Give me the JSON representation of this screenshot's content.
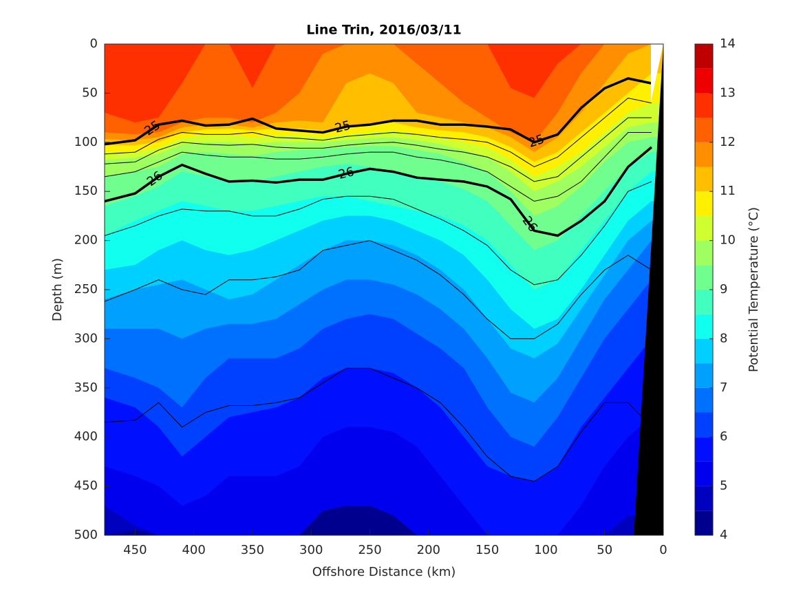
{
  "chart_data": {
    "type": "contour",
    "title": "Line Trin, 2016/03/11",
    "xlabel": "Offshore Distance (km)",
    "ylabel": "Depth (m)",
    "colorbar_label": "Potential Temperature (°C)",
    "xlim": [
      476,
      0
    ],
    "ylim": [
      0,
      500
    ],
    "xticks": [
      450,
      400,
      350,
      300,
      250,
      200,
      150,
      100,
      50,
      0
    ],
    "yticks": [
      0,
      50,
      100,
      150,
      200,
      250,
      300,
      350,
      400,
      450,
      500
    ],
    "clim": [
      4,
      14
    ],
    "cticks": [
      4,
      5,
      6,
      7,
      8,
      9,
      10,
      11,
      12,
      13,
      14
    ],
    "levels": [
      4,
      4.5,
      5,
      5.5,
      6,
      6.5,
      7,
      7.5,
      8,
      8.5,
      9,
      9.5,
      10,
      10.5,
      11,
      11.5,
      12,
      12.5,
      13,
      13.5,
      14
    ],
    "colors": [
      "#00008f",
      "#0000bf",
      "#0000ef",
      "#0010ff",
      "#0040ff",
      "#0070ff",
      "#00a0ff",
      "#00d0ff",
      "#10ffef",
      "#40ffbf",
      "#70ff8f",
      "#a0ff60",
      "#d0ff30",
      "#ffef00",
      "#ffbf00",
      "#ff8f00",
      "#ff6000",
      "#ff3000",
      "#ef0000",
      "#bf0000"
    ],
    "x": [
      476,
      450,
      430,
      410,
      390,
      370,
      350,
      330,
      310,
      290,
      270,
      250,
      230,
      210,
      190,
      170,
      150,
      130,
      110,
      90,
      70,
      50,
      30,
      10
    ],
    "isotherms": [
      {
        "level": 12.5,
        "depths": [
          70,
          80,
          75,
          40,
          0,
          0,
          45,
          0,
          0,
          0,
          0,
          0,
          0,
          0,
          0,
          0,
          0,
          45,
          55,
          20,
          0,
          0,
          0,
          0
        ]
      },
      {
        "level": 12,
        "depths": [
          90,
          92,
          90,
          80,
          75,
          75,
          80,
          70,
          50,
          10,
          0,
          0,
          0,
          20,
          40,
          60,
          75,
          90,
          100,
          70,
          30,
          0,
          0,
          0
        ]
      },
      {
        "level": 11.5,
        "depths": [
          97,
          98,
          95,
          85,
          82,
          82,
          85,
          80,
          78,
          80,
          40,
          30,
          40,
          70,
          75,
          80,
          85,
          95,
          110,
          95,
          70,
          40,
          10,
          0
        ]
      },
      {
        "level": 11,
        "depths": [
          103,
          103,
          100,
          90,
          87,
          86,
          88,
          86,
          86,
          88,
          85,
          82,
          80,
          85,
          88,
          90,
          95,
          105,
          120,
          110,
          90,
          70,
          50,
          30
        ]
      },
      {
        "level": 10.5,
        "depths": [
          110,
          110,
          106,
          96,
          93,
          93,
          95,
          93,
          93,
          95,
          92,
          90,
          88,
          92,
          95,
          100,
          105,
          118,
          135,
          125,
          110,
          90,
          70,
          60
        ]
      },
      {
        "level": 10,
        "depths": [
          118,
          116,
          112,
          102,
          100,
          100,
          102,
          100,
          100,
          100,
          98,
          96,
          95,
          98,
          102,
          108,
          115,
          130,
          150,
          140,
          125,
          105,
          85,
          80
        ]
      },
      {
        "level": 9.5,
        "depths": [
          135,
          130,
          125,
          112,
          110,
          112,
          114,
          110,
          108,
          107,
          105,
          104,
          104,
          108,
          112,
          120,
          130,
          150,
          175,
          165,
          145,
          120,
          100,
          95
        ]
      },
      {
        "level": 9,
        "depths": [
          165,
          155,
          145,
          130,
          135,
          140,
          140,
          135,
          130,
          125,
          122,
          125,
          130,
          135,
          140,
          148,
          160,
          185,
          210,
          200,
          175,
          150,
          125,
          110
        ]
      },
      {
        "level": 8.5,
        "depths": [
          195,
          180,
          170,
          160,
          165,
          170,
          170,
          165,
          160,
          155,
          155,
          160,
          165,
          170,
          175,
          185,
          200,
          225,
          250,
          240,
          210,
          180,
          150,
          130
        ]
      },
      {
        "level": 8,
        "depths": [
          230,
          225,
          210,
          200,
          210,
          215,
          210,
          200,
          190,
          180,
          175,
          175,
          180,
          190,
          200,
          215,
          240,
          270,
          290,
          280,
          250,
          215,
          180,
          160
        ]
      },
      {
        "level": 7.5,
        "depths": [
          260,
          250,
          245,
          240,
          250,
          260,
          255,
          240,
          225,
          210,
          200,
          200,
          205,
          215,
          230,
          250,
          280,
          310,
          320,
          305,
          270,
          235,
          200,
          180
        ]
      },
      {
        "level": 7,
        "depths": [
          290,
          290,
          290,
          300,
          290,
          285,
          285,
          280,
          265,
          250,
          240,
          240,
          245,
          255,
          270,
          290,
          320,
          355,
          365,
          340,
          300,
          260,
          230,
          200
        ]
      },
      {
        "level": 6.5,
        "depths": [
          330,
          340,
          350,
          370,
          340,
          320,
          320,
          320,
          310,
          290,
          280,
          275,
          280,
          295,
          310,
          330,
          370,
          400,
          410,
          380,
          340,
          300,
          270,
          240
        ]
      },
      {
        "level": 6,
        "depths": [
          360,
          370,
          390,
          420,
          400,
          380,
          375,
          370,
          360,
          340,
          330,
          330,
          335,
          350,
          370,
          400,
          430,
          440,
          445,
          430,
          390,
          360,
          330,
          300
        ]
      },
      {
        "level": 5.5,
        "depths": [
          430,
          440,
          450,
          470,
          460,
          440,
          440,
          440,
          430,
          400,
          390,
          390,
          395,
          410,
          440,
          470,
          500,
          500,
          500,
          500,
          470,
          430,
          400,
          380
        ]
      },
      {
        "level": 5,
        "depths": [
          470,
          490,
          500,
          500,
          500,
          500,
          500,
          500,
          500,
          480,
          470,
          470,
          480,
          500,
          500,
          500,
          500,
          500,
          500,
          500,
          500,
          500,
          480,
          480
        ]
      },
      {
        "level": 4.5,
        "depths": [
          500,
          495,
          500,
          500,
          500,
          500,
          500,
          500,
          500,
          475,
          470,
          470,
          480,
          500,
          500,
          500,
          500,
          500,
          500,
          500,
          500,
          500,
          500,
          500
        ]
      }
    ],
    "density_contours": [
      {
        "label": "25",
        "label_x": [
          435,
          273,
          108
        ],
        "depths": [
          102,
          98,
          82,
          78,
          83,
          82,
          76,
          86,
          88,
          90,
          84,
          82,
          78,
          78,
          82,
          82,
          84,
          87,
          100,
          92,
          65,
          45,
          35,
          40
        ]
      },
      {
        "depths": [
          112,
          110,
          97,
          90,
          92,
          92,
          90,
          95,
          96,
          98,
          94,
          92,
          90,
          92,
          95,
          97,
          100,
          110,
          125,
          115,
          95,
          75,
          55,
          60
        ]
      },
      {
        "depths": [
          122,
          120,
          108,
          100,
          102,
          103,
          102,
          105,
          106,
          106,
          103,
          101,
          100,
          103,
          107,
          110,
          115,
          125,
          140,
          135,
          115,
          95,
          75,
          75
        ]
      },
      {
        "depths": [
          135,
          130,
          120,
          110,
          113,
          115,
          115,
          117,
          117,
          115,
          112,
          110,
          110,
          115,
          118,
          123,
          130,
          145,
          160,
          155,
          140,
          115,
          90,
          90
        ]
      },
      {
        "label": "26",
        "label_x": [
          433,
          270,
          114
        ],
        "depths": [
          160,
          152,
          135,
          123,
          132,
          140,
          139,
          141,
          138,
          138,
          132,
          127,
          130,
          136,
          138,
          140,
          145,
          158,
          190,
          195,
          180,
          160,
          125,
          105
        ]
      },
      {
        "depths": [
          195,
          185,
          175,
          168,
          170,
          170,
          175,
          175,
          168,
          158,
          155,
          155,
          158,
          168,
          178,
          190,
          205,
          230,
          245,
          240,
          215,
          185,
          150,
          140
        ]
      },
      {
        "depths": [
          262,
          250,
          240,
          250,
          255,
          240,
          240,
          237,
          230,
          210,
          205,
          200,
          210,
          220,
          235,
          255,
          280,
          300,
          300,
          285,
          255,
          230,
          215,
          230
        ]
      },
      {
        "depths": [
          385,
          383,
          365,
          390,
          375,
          368,
          368,
          365,
          360,
          345,
          330,
          330,
          340,
          350,
          365,
          390,
          420,
          440,
          445,
          430,
          395,
          365,
          365,
          390
        ]
      }
    ]
  }
}
